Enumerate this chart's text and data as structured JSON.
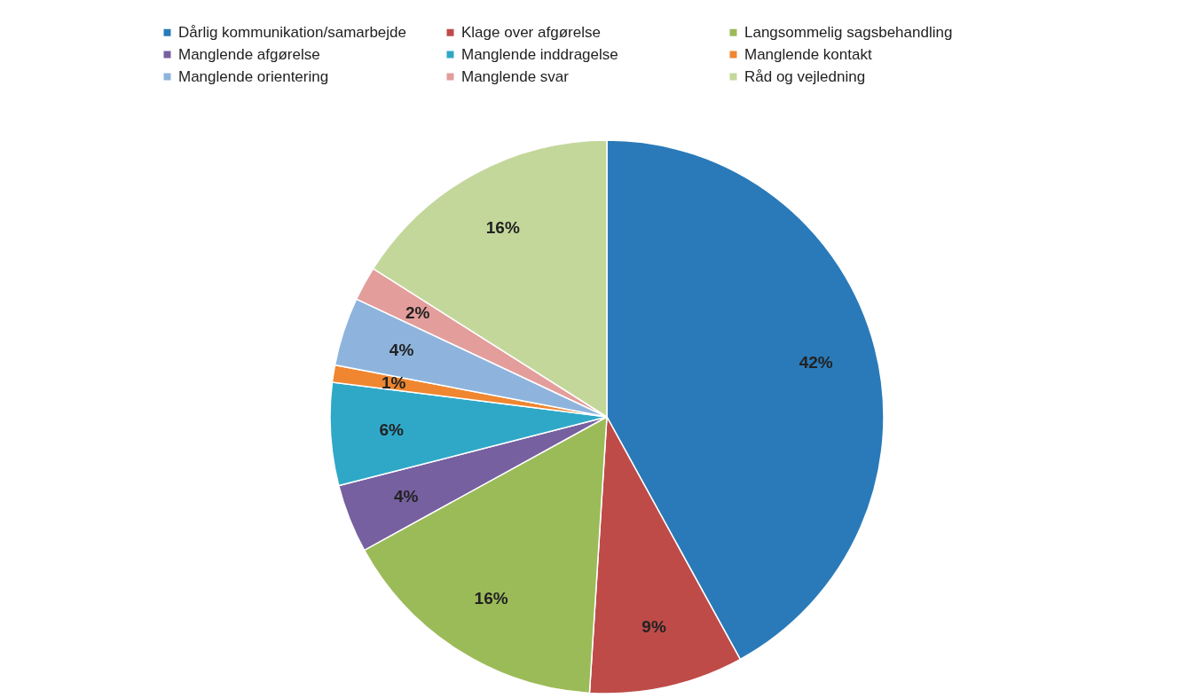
{
  "chart_data": {
    "type": "pie",
    "categories": [
      "Dårlig kommunikation/samarbejde",
      "Klage over afgørelse",
      "Langsommelig sagsbehandling",
      "Manglende afgørelse",
      "Manglende inddragelse",
      "Manglende kontakt",
      "Manglende orientering",
      "Manglende svar",
      "Råd og vejledning"
    ],
    "values": [
      42,
      9,
      16,
      4,
      6,
      1,
      4,
      2,
      16
    ],
    "value_labels": [
      "42%",
      "9%",
      "16%",
      "4%",
      "6%",
      "1%",
      "4%",
      "2%",
      "16%"
    ],
    "colors": [
      "#2a7ab9",
      "#be4b48",
      "#9bbb59",
      "#7660a0",
      "#2fa8c8",
      "#f0862f",
      "#8eb4dd",
      "#e39d9b",
      "#c4d79b"
    ],
    "legend": "top"
  }
}
